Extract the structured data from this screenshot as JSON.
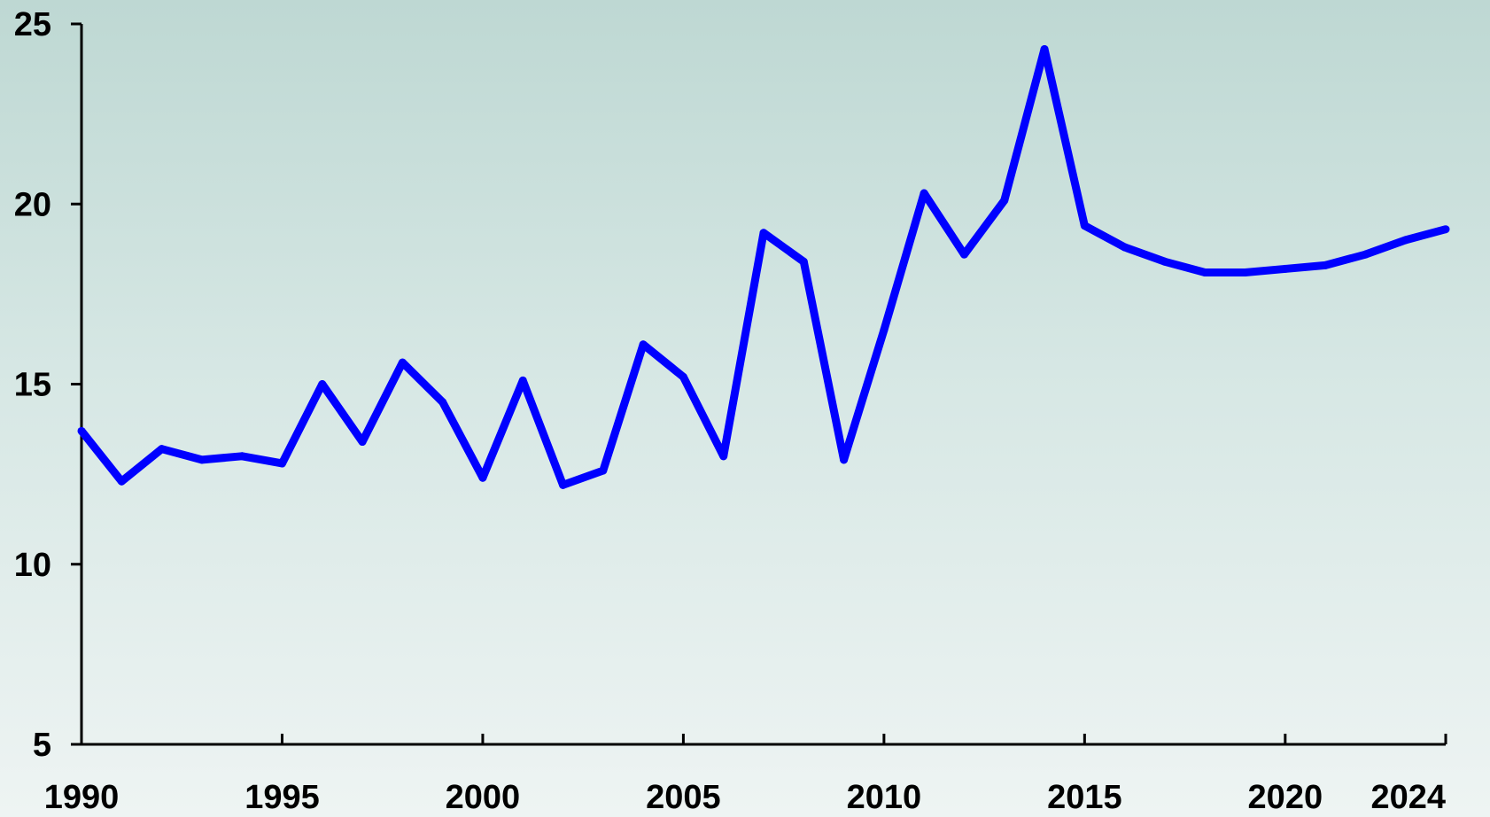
{
  "chart_data": {
    "type": "line",
    "title": "",
    "xlabel": "",
    "ylabel": "",
    "x": [
      1990,
      1991,
      1992,
      1993,
      1994,
      1995,
      1996,
      1997,
      1998,
      1999,
      2000,
      2001,
      2002,
      2003,
      2004,
      2005,
      2006,
      2007,
      2008,
      2009,
      2010,
      2011,
      2012,
      2013,
      2014,
      2015,
      2016,
      2017,
      2018,
      2019,
      2020,
      2021,
      2022,
      2023,
      2024
    ],
    "series": [
      {
        "name": "",
        "color": "#0000ff",
        "values": [
          13.7,
          12.3,
          13.2,
          12.9,
          13.0,
          12.8,
          15.0,
          13.4,
          15.6,
          14.5,
          12.4,
          15.1,
          12.2,
          12.6,
          16.1,
          15.2,
          13.0,
          19.2,
          18.4,
          12.9,
          16.5,
          20.3,
          18.6,
          20.1,
          24.3,
          19.4,
          18.8,
          18.4,
          18.1,
          18.1,
          18.2,
          18.3,
          18.6,
          19.0,
          19.3
        ]
      }
    ],
    "xlim": [
      1990,
      2024
    ],
    "ylim": [
      5,
      25
    ],
    "x_ticks": [
      1990,
      1995,
      2000,
      2005,
      2010,
      2015,
      2020,
      2024
    ],
    "y_ticks": [
      5,
      10,
      15,
      20,
      25
    ],
    "x_tick_labels": [
      "1990",
      "1995",
      "2000",
      "2005",
      "2010",
      "2015",
      "2020",
      "2024"
    ],
    "y_tick_labels": [
      "5",
      "10",
      "15",
      "20",
      "25"
    ],
    "grid": false,
    "legend": "none"
  }
}
